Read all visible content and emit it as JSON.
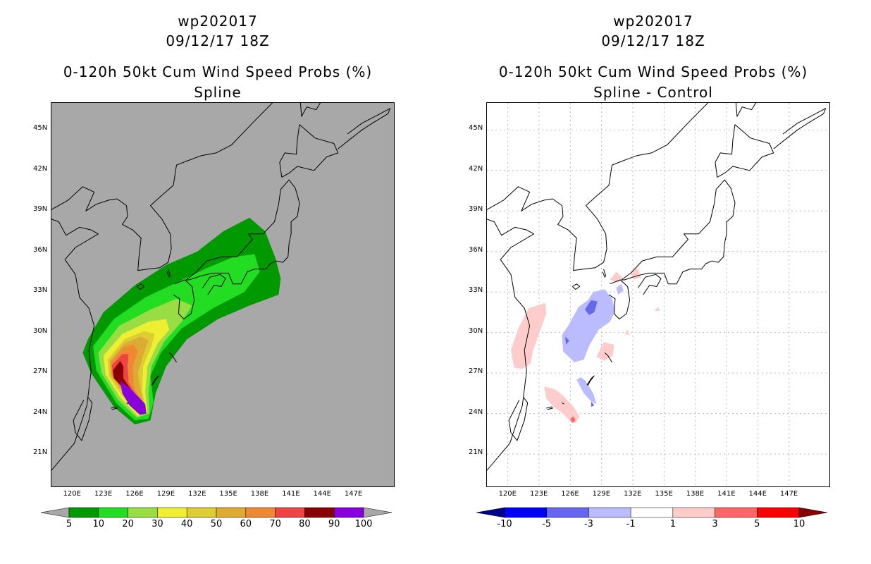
{
  "colors": {
    "prob_bg": "#a8a8a8",
    "prob_levels": [
      "#009900",
      "#22dd22",
      "#99dd44",
      "#eeee33",
      "#ddcc33",
      "#ddaa33",
      "#ee8833",
      "#ee4444",
      "#880000",
      "#8800dd"
    ],
    "prob_under": "#a8a8a8",
    "prob_over": "#a8a8a8",
    "diff_levels": [
      "#0000ff",
      "#6666ee",
      "#bbbbff",
      "#ffffff",
      "#ffcccc",
      "#ff6666",
      "#ff0000"
    ],
    "diff_under": "#000088",
    "diff_over": "#880000"
  },
  "chart_data": [
    {
      "type": "heatmap",
      "title_lines": [
        "wp202017",
        "09/12/17 18Z",
        "0-120h 50kt Cum Wind Speed Probs (%)",
        "Spline"
      ],
      "xlim": [
        118,
        151
      ],
      "ylim": [
        18.5,
        47
      ],
      "x_ticks": [
        "120E",
        "123E",
        "126E",
        "129E",
        "132E",
        "135E",
        "138E",
        "141E",
        "144E",
        "147E"
      ],
      "x_tick_values": [
        120,
        123,
        126,
        129,
        132,
        135,
        138,
        141,
        144,
        147
      ],
      "y_ticks": [
        "21N",
        "24N",
        "27N",
        "30N",
        "33N",
        "36N",
        "39N",
        "42N",
        "45N"
      ],
      "y_tick_values": [
        21,
        24,
        27,
        30,
        33,
        36,
        39,
        42,
        45
      ],
      "grid": false,
      "colorbar_labels": [
        "5",
        "10",
        "20",
        "30",
        "40",
        "50",
        "60",
        "70",
        "80",
        "90",
        "100"
      ],
      "units": "%",
      "contours": [
        {
          "level": 5,
          "points": [
            [
              121.5,
              29.5
            ],
            [
              123,
              31.5
            ],
            [
              126,
              33.5
            ],
            [
              129,
              35
            ],
            [
              132,
              36
            ],
            [
              134.5,
              37.5
            ],
            [
              137,
              38.5
            ],
            [
              138.5,
              37.5
            ],
            [
              139.5,
              35.5
            ],
            [
              140,
              34
            ],
            [
              139.8,
              32.8
            ],
            [
              137,
              32
            ],
            [
              134,
              31
            ],
            [
              131,
              29.5
            ],
            [
              129,
              27.5
            ],
            [
              128,
              25.5
            ],
            [
              127.5,
              23.5
            ],
            [
              126,
              23.2
            ],
            [
              124,
              24.5
            ],
            [
              121.8,
              27
            ],
            [
              121,
              28.5
            ]
          ]
        },
        {
          "level": 10,
          "points": [
            [
              122,
              29
            ],
            [
              124,
              31
            ],
            [
              127,
              32.6
            ],
            [
              130,
              33.7
            ],
            [
              133,
              34.8
            ],
            [
              135.5,
              35.6
            ],
            [
              137.5,
              35.8
            ],
            [
              138,
              34.5
            ],
            [
              136.5,
              33
            ],
            [
              133.5,
              31.8
            ],
            [
              130.5,
              30.3
            ],
            [
              128.5,
              28.5
            ],
            [
              127.5,
              26.8
            ],
            [
              127.8,
              24.8
            ],
            [
              127.3,
              23.6
            ],
            [
              126,
              23.5
            ],
            [
              124.2,
              24.8
            ],
            [
              122.3,
              27.2
            ]
          ]
        },
        {
          "level": 20,
          "points": [
            [
              122.5,
              28.5
            ],
            [
              124.5,
              30.5
            ],
            [
              127.5,
              31.7
            ],
            [
              130,
              32.5
            ],
            [
              131.5,
              32
            ],
            [
              130.5,
              30.8
            ],
            [
              128.8,
              29.3
            ],
            [
              127.6,
              27.5
            ],
            [
              127.3,
              25.5
            ],
            [
              127.4,
              24
            ],
            [
              126.2,
              23.7
            ],
            [
              124.4,
              25
            ],
            [
              122.8,
              27
            ]
          ]
        },
        {
          "level": 30,
          "points": [
            [
              123,
              28.3
            ],
            [
              124.8,
              29.9
            ],
            [
              127.3,
              30.8
            ],
            [
              129,
              31
            ],
            [
              129.3,
              30.2
            ],
            [
              128.2,
              29.2
            ],
            [
              127.2,
              27.5
            ],
            [
              127,
              25.6
            ],
            [
              127.2,
              24.1
            ],
            [
              126.3,
              23.8
            ],
            [
              124.6,
              25.2
            ],
            [
              123.2,
              26.9
            ]
          ]
        },
        {
          "level": 40,
          "points": [
            [
              123.4,
              28
            ],
            [
              125,
              29.5
            ],
            [
              126.9,
              30.1
            ],
            [
              127.9,
              29.9
            ],
            [
              127.6,
              29
            ],
            [
              126.8,
              27.5
            ],
            [
              126.7,
              25.7
            ],
            [
              127.1,
              24.2
            ],
            [
              126.4,
              23.9
            ],
            [
              124.8,
              25.3
            ],
            [
              123.5,
              26.8
            ]
          ]
        },
        {
          "level": 50,
          "points": [
            [
              123.6,
              27.9
            ],
            [
              125,
              29.2
            ],
            [
              126.6,
              29.7
            ],
            [
              127.3,
              29.4
            ],
            [
              126.8,
              28.3
            ],
            [
              126.3,
              27
            ],
            [
              126.6,
              25.5
            ],
            [
              127,
              24.2
            ],
            [
              126.4,
              24
            ],
            [
              124.9,
              25.5
            ],
            [
              123.7,
              26.8
            ]
          ]
        },
        {
          "level": 60,
          "points": [
            [
              123.7,
              27.8
            ],
            [
              124.9,
              28.9
            ],
            [
              125.9,
              29.1
            ],
            [
              126.3,
              28.6
            ],
            [
              125.8,
              27.5
            ],
            [
              125.9,
              26
            ],
            [
              126.7,
              24.6
            ],
            [
              127,
              24.2
            ],
            [
              126.3,
              24.1
            ],
            [
              125,
              25.6
            ],
            [
              123.8,
              26.8
            ]
          ]
        },
        {
          "level": 70,
          "points": [
            [
              123.8,
              27.6
            ],
            [
              124.8,
              28.4
            ],
            [
              125.4,
              28.4
            ],
            [
              125.3,
              27.5
            ],
            [
              125.4,
              26.3
            ],
            [
              126.4,
              25
            ],
            [
              126.9,
              24.3
            ],
            [
              126.3,
              24.2
            ],
            [
              125.1,
              25.6
            ],
            [
              123.9,
              26.8
            ]
          ]
        },
        {
          "level": 80,
          "points": [
            [
              123.9,
              27.2
            ],
            [
              124.6,
              27.9
            ],
            [
              124.9,
              27.5
            ],
            [
              124.9,
              26.6
            ],
            [
              125.8,
              25.6
            ],
            [
              126.8,
              24.5
            ],
            [
              126.3,
              24.3
            ],
            [
              125,
              25.8
            ],
            [
              124,
              26.6
            ]
          ]
        },
        {
          "level": 90,
          "points": [
            [
              124.6,
              26.4
            ],
            [
              125.5,
              25.9
            ],
            [
              126.4,
              25.2
            ],
            [
              127,
              24.7
            ],
            [
              127.1,
              24
            ],
            [
              126.5,
              23.9
            ],
            [
              125.5,
              24.6
            ],
            [
              124.8,
              25.5
            ]
          ]
        }
      ]
    },
    {
      "type": "heatmap",
      "title_lines": [
        "wp202017",
        "09/12/17 18Z",
        "0-120h 50kt Cum Wind Speed Probs (%)",
        "Spline - Control"
      ],
      "xlim": [
        118,
        151
      ],
      "ylim": [
        18.5,
        47
      ],
      "x_ticks": [
        "120E",
        "123E",
        "126E",
        "129E",
        "132E",
        "135E",
        "138E",
        "141E",
        "144E",
        "147E"
      ],
      "x_tick_values": [
        120,
        123,
        126,
        129,
        132,
        135,
        138,
        141,
        144,
        147
      ],
      "y_ticks": [
        "21N",
        "24N",
        "27N",
        "30N",
        "33N",
        "36N",
        "39N",
        "42N",
        "45N"
      ],
      "y_tick_values": [
        21,
        24,
        27,
        30,
        33,
        36,
        39,
        42,
        45
      ],
      "grid": true,
      "colorbar_labels": [
        "-10",
        "-5",
        "-3",
        "-1",
        "1",
        "3",
        "5",
        "10"
      ],
      "units": "%",
      "contours": [
        {
          "level": -1,
          "points": [
            [
              125.8,
              30.5
            ],
            [
              126.8,
              31.9
            ],
            [
              127.7,
              32.4
            ],
            [
              128.2,
              33
            ],
            [
              129.3,
              33.2
            ],
            [
              130,
              32.5
            ],
            [
              130.3,
              31.6
            ],
            [
              129.8,
              30.8
            ],
            [
              128.7,
              30.2
            ],
            [
              127.8,
              29
            ],
            [
              127.3,
              28
            ],
            [
              126.4,
              27.8
            ],
            [
              125.3,
              28.6
            ],
            [
              125.2,
              29.8
            ]
          ]
        },
        {
          "level": -1,
          "points": [
            [
              126.6,
              26.5
            ],
            [
              127.3,
              25.5
            ],
            [
              128,
              24.9
            ],
            [
              128.5,
              24.7
            ],
            [
              128.2,
              25.5
            ],
            [
              127.5,
              26.4
            ],
            [
              127,
              26.7
            ]
          ]
        },
        {
          "level": -1,
          "points": [
            [
              130.4,
              33.3
            ],
            [
              130.9,
              33.6
            ],
            [
              131.1,
              33.1
            ],
            [
              130.6,
              32.8
            ]
          ]
        },
        {
          "level": -3,
          "points": [
            [
              127.4,
              31.7
            ],
            [
              128,
              32.4
            ],
            [
              128.6,
              32.3
            ],
            [
              128.3,
              31.5
            ],
            [
              127.8,
              31.3
            ]
          ]
        },
        {
          "level": -3,
          "points": [
            [
              125.5,
              29.7
            ],
            [
              125.9,
              29.4
            ],
            [
              125.6,
              29.1
            ]
          ]
        },
        {
          "level": -3,
          "points": [
            [
              128,
              24.9
            ],
            [
              128.3,
              24.6
            ],
            [
              128,
              24.5
            ]
          ]
        },
        {
          "level": 1,
          "points": [
            [
              120.3,
              28.7
            ],
            [
              121,
              30.3
            ],
            [
              122,
              31.8
            ],
            [
              123.6,
              32.2
            ],
            [
              123.7,
              31.4
            ],
            [
              123.1,
              30.1
            ],
            [
              122.4,
              28.6
            ],
            [
              122.2,
              27.7
            ],
            [
              121.4,
              27.3
            ],
            [
              120.6,
              27.4
            ]
          ]
        },
        {
          "level": 1,
          "points": [
            [
              123.5,
              26
            ],
            [
              124.5,
              25.8
            ],
            [
              125.2,
              25.4
            ],
            [
              126.2,
              24.6
            ],
            [
              126.9,
              23.8
            ],
            [
              126.5,
              23.3
            ],
            [
              126,
              23.4
            ],
            [
              125.3,
              24
            ],
            [
              124.4,
              24.5
            ],
            [
              123.7,
              25.1
            ]
          ]
        },
        {
          "level": 1,
          "points": [
            [
              128.5,
              28.2
            ],
            [
              129.2,
              29.3
            ],
            [
              130.2,
              29.1
            ],
            [
              130.1,
              28.3
            ],
            [
              129.3,
              27.9
            ]
          ]
        },
        {
          "level": 1,
          "points": [
            [
              129.8,
              33.9
            ],
            [
              130.4,
              34.5
            ],
            [
              131,
              34.1
            ],
            [
              130.6,
              33.7
            ]
          ]
        },
        {
          "level": 1,
          "points": [
            [
              131.8,
              34.4
            ],
            [
              132.4,
              34.8
            ],
            [
              132.8,
              34.1
            ],
            [
              132.1,
              33.9
            ]
          ]
        },
        {
          "level": 1,
          "points": [
            [
              131.2,
              29.9
            ],
            [
              131.5,
              30.2
            ],
            [
              131.7,
              29.8
            ]
          ]
        },
        {
          "level": 1,
          "points": [
            [
              134.1,
              31.6
            ],
            [
              134.4,
              31.9
            ],
            [
              134.6,
              31.6
            ]
          ]
        },
        {
          "level": 3,
          "points": [
            [
              126,
              23.6
            ],
            [
              126.3,
              23.8
            ],
            [
              126.5,
              23.5
            ],
            [
              126.2,
              23.3
            ]
          ]
        }
      ]
    }
  ]
}
